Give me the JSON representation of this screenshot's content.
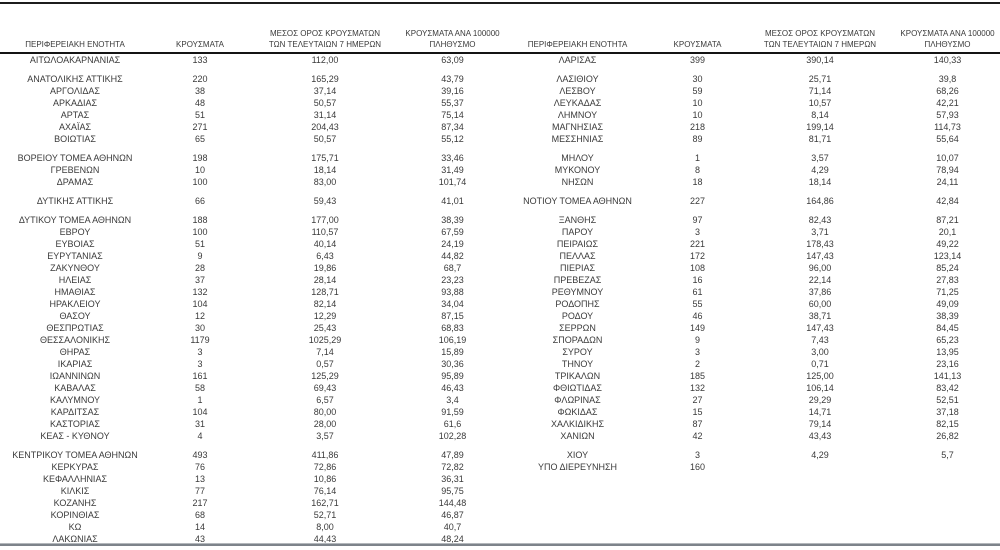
{
  "meta": {
    "language": "el",
    "text_color": "#3a3a3a",
    "top_rule_color": "#1c1c1c",
    "header_rule_color": "#141414",
    "bottom_rule_color": "#8a9096",
    "decimal_separator": ","
  },
  "columns": [
    {
      "key": "region",
      "lines": [
        "ΠΕΡΙΦΕΡΕΙΑΚΗ ΕΝΟΤΗΤΑ"
      ]
    },
    {
      "key": "cases",
      "lines": [
        "ΚΡΟΥΣΜΑΤΑ"
      ]
    },
    {
      "key": "avg-7day",
      "lines": [
        "ΜΕΣΟΣ ΟΡΟΣ ΚΡΟΥΣΜΑΤΩΝ",
        "ΤΩΝ ΤΕΛΕΥΤΑΙΩΝ 7 ΗΜΕΡΩΝ"
      ]
    },
    {
      "key": "per-100k",
      "lines": [
        "ΚΡΟΥΣΜΑΤΑ ΑΝΑ 100000",
        "ΠΛΗΘΥΣΜΟ"
      ]
    }
  ],
  "rows": [
    {
      "type": "data",
      "left": [
        "ΑΙΤΩΛΟΑΚΑΡΝΑΝΙΑΣ",
        "133",
        "112,00",
        "63,09"
      ],
      "right": [
        "ΛΑΡΙΣΑΣ",
        "399",
        "390,14",
        "140,33"
      ]
    },
    {
      "type": "spacer"
    },
    {
      "type": "data",
      "left": [
        "ΑΝΑΤΟΛΙΚΗΣ ΑΤΤΙΚΗΣ",
        "220",
        "165,29",
        "43,79"
      ],
      "right": [
        "ΛΑΣΙΘΙΟΥ",
        "30",
        "25,71",
        "39,8"
      ]
    },
    {
      "type": "data",
      "left": [
        "ΑΡΓΟΛΙΔΑΣ",
        "38",
        "37,14",
        "39,16"
      ],
      "right": [
        "ΛΕΣΒΟΥ",
        "59",
        "71,14",
        "68,26"
      ]
    },
    {
      "type": "data",
      "left": [
        "ΑΡΚΑΔΙΑΣ",
        "48",
        "50,57",
        "55,37"
      ],
      "right": [
        "ΛΕΥΚΑΔΑΣ",
        "10",
        "10,57",
        "42,21"
      ]
    },
    {
      "type": "data",
      "left": [
        "ΑΡΤΑΣ",
        "51",
        "31,14",
        "75,14"
      ],
      "right": [
        "ΛΗΜΝΟΥ",
        "10",
        "8,14",
        "57,93"
      ]
    },
    {
      "type": "data",
      "left": [
        "ΑΧΑΪΑΣ",
        "271",
        "204,43",
        "87,34"
      ],
      "right": [
        "ΜΑΓΝΗΣΙΑΣ",
        "218",
        "199,14",
        "114,73"
      ]
    },
    {
      "type": "data",
      "left": [
        "ΒΟΙΩΤΙΑΣ",
        "65",
        "50,57",
        "55,12"
      ],
      "right": [
        "ΜΕΣΣΗΝΙΑΣ",
        "89",
        "81,71",
        "55,64"
      ]
    },
    {
      "type": "spacer"
    },
    {
      "type": "data",
      "left": [
        "ΒΟΡΕΙΟΥ ΤΟΜΕΑ ΑΘΗΝΩΝ",
        "198",
        "175,71",
        "33,46"
      ],
      "right": [
        "ΜΗΛΟΥ",
        "1",
        "3,57",
        "10,07"
      ]
    },
    {
      "type": "data",
      "left": [
        "ΓΡΕΒΕΝΩΝ",
        "10",
        "18,14",
        "31,49"
      ],
      "right": [
        "ΜΥΚΟΝΟΥ",
        "8",
        "4,29",
        "78,94"
      ]
    },
    {
      "type": "data",
      "left": [
        "ΔΡΑΜΑΣ",
        "100",
        "83,00",
        "101,74"
      ],
      "right": [
        "ΝΗΣΩΝ",
        "18",
        "18,14",
        "24,11"
      ]
    },
    {
      "type": "spacer"
    },
    {
      "type": "data",
      "left": [
        "ΔΥΤΙΚΗΣ ΑΤΤΙΚΗΣ",
        "66",
        "59,43",
        "41,01"
      ],
      "right": [
        "ΝΟΤΙΟΥ ΤΟΜΕΑ ΑΘΗΝΩΝ",
        "227",
        "164,86",
        "42,84"
      ]
    },
    {
      "type": "spacer"
    },
    {
      "type": "data",
      "left": [
        "ΔΥΤΙΚΟΥ ΤΟΜΕΑ ΑΘΗΝΩΝ",
        "188",
        "177,00",
        "38,39"
      ],
      "right": [
        "ΞΑΝΘΗΣ",
        "97",
        "82,43",
        "87,21"
      ]
    },
    {
      "type": "data",
      "left": [
        "ΕΒΡΟΥ",
        "100",
        "110,57",
        "67,59"
      ],
      "right": [
        "ΠΑΡΟΥ",
        "3",
        "3,71",
        "20,1"
      ]
    },
    {
      "type": "data",
      "left": [
        "ΕΥΒΟΙΑΣ",
        "51",
        "40,14",
        "24,19"
      ],
      "right": [
        "ΠΕΙΡΑΙΩΣ",
        "221",
        "178,43",
        "49,22"
      ]
    },
    {
      "type": "data",
      "left": [
        "ΕΥΡΥΤΑΝΙΑΣ",
        "9",
        "6,43",
        "44,82"
      ],
      "right": [
        "ΠΕΛΛΑΣ",
        "172",
        "147,43",
        "123,14"
      ]
    },
    {
      "type": "data",
      "left": [
        "ΖΑΚΥΝΘΟΥ",
        "28",
        "19,86",
        "68,7"
      ],
      "right": [
        "ΠΙΕΡΙΑΣ",
        "108",
        "96,00",
        "85,24"
      ]
    },
    {
      "type": "data",
      "left": [
        "ΗΛΕΙΑΣ",
        "37",
        "28,14",
        "23,23"
      ],
      "right": [
        "ΠΡΕΒΕΖΑΣ",
        "16",
        "22,14",
        "27,83"
      ]
    },
    {
      "type": "data",
      "left": [
        "ΗΜΑΘΙΑΣ",
        "132",
        "128,71",
        "93,88"
      ],
      "right": [
        "ΡΕΘΥΜΝΟΥ",
        "61",
        "37,86",
        "71,25"
      ]
    },
    {
      "type": "data",
      "left": [
        "ΗΡΑΚΛΕΙΟΥ",
        "104",
        "82,14",
        "34,04"
      ],
      "right": [
        "ΡΟΔΟΠΗΣ",
        "55",
        "60,00",
        "49,09"
      ]
    },
    {
      "type": "data",
      "left": [
        "ΘΑΣΟΥ",
        "12",
        "12,29",
        "87,15"
      ],
      "right": [
        "ΡΟΔΟΥ",
        "46",
        "38,71",
        "38,39"
      ]
    },
    {
      "type": "data",
      "left": [
        "ΘΕΣΠΡΩΤΙΑΣ",
        "30",
        "25,43",
        "68,83"
      ],
      "right": [
        "ΣΕΡΡΩΝ",
        "149",
        "147,43",
        "84,45"
      ]
    },
    {
      "type": "data",
      "left": [
        "ΘΕΣΣΑΛΟΝΙΚΗΣ",
        "1179",
        "1025,29",
        "106,19"
      ],
      "right": [
        "ΣΠΟΡΑΔΩΝ",
        "9",
        "7,43",
        "65,23"
      ]
    },
    {
      "type": "data",
      "left": [
        "ΘΗΡΑΣ",
        "3",
        "7,14",
        "15,89"
      ],
      "right": [
        "ΣΥΡΟΥ",
        "3",
        "3,00",
        "13,95"
      ]
    },
    {
      "type": "data",
      "left": [
        "ΙΚΑΡΙΑΣ",
        "3",
        "0,57",
        "30,36"
      ],
      "right": [
        "ΤΗΝΟΥ",
        "2",
        "0,71",
        "23,16"
      ]
    },
    {
      "type": "data",
      "left": [
        "ΙΩΑΝΝΙΝΩΝ",
        "161",
        "125,29",
        "95,89"
      ],
      "right": [
        "ΤΡΙΚΑΛΩΝ",
        "185",
        "125,00",
        "141,13"
      ]
    },
    {
      "type": "data",
      "left": [
        "ΚΑΒΑΛΑΣ",
        "58",
        "69,43",
        "46,43"
      ],
      "right": [
        "ΦΘΙΩΤΙΔΑΣ",
        "132",
        "106,14",
        "83,42"
      ]
    },
    {
      "type": "data",
      "left": [
        "ΚΑΛΥΜΝΟΥ",
        "1",
        "6,57",
        "3,4"
      ],
      "right": [
        "ΦΛΩΡΙΝΑΣ",
        "27",
        "29,29",
        "52,51"
      ]
    },
    {
      "type": "data",
      "left": [
        "ΚΑΡΔΙΤΣΑΣ",
        "104",
        "80,00",
        "91,59"
      ],
      "right": [
        "ΦΩΚΙΔΑΣ",
        "15",
        "14,71",
        "37,18"
      ]
    },
    {
      "type": "data",
      "left": [
        "ΚΑΣΤΟΡΙΑΣ",
        "31",
        "28,00",
        "61,6"
      ],
      "right": [
        "ΧΑΛΚΙΔΙΚΗΣ",
        "87",
        "79,14",
        "82,15"
      ]
    },
    {
      "type": "data",
      "left": [
        "ΚΕΑΣ - ΚΥΘΝΟΥ",
        "4",
        "3,57",
        "102,28"
      ],
      "right": [
        "ΧΑΝΙΩΝ",
        "42",
        "43,43",
        "26,82"
      ]
    },
    {
      "type": "spacer"
    },
    {
      "type": "data",
      "left": [
        "ΚΕΝΤΡΙΚΟΥ ΤΟΜΕΑ ΑΘΗΝΩΝ",
        "493",
        "411,86",
        "47,89"
      ],
      "right": [
        "ΧΙΟΥ",
        "3",
        "4,29",
        "5,7"
      ]
    },
    {
      "type": "data",
      "left": [
        "ΚΕΡΚΥΡΑΣ",
        "76",
        "72,86",
        "72,82"
      ],
      "right": [
        "ΥΠΟ ΔΙΕΡΕΥΝΗΣΗ",
        "160",
        "",
        ""
      ]
    },
    {
      "type": "data",
      "left": [
        "ΚΕΦΑΛΛΗΝΙΑΣ",
        "13",
        "10,86",
        "36,31"
      ],
      "right": [
        "",
        "",
        "",
        ""
      ]
    },
    {
      "type": "data",
      "left": [
        "ΚΙΛΚΙΣ",
        "77",
        "76,14",
        "95,75"
      ],
      "right": [
        "",
        "",
        "",
        ""
      ]
    },
    {
      "type": "data",
      "left": [
        "ΚΟΖΑΝΗΣ",
        "217",
        "162,71",
        "144,48"
      ],
      "right": [
        "",
        "",
        "",
        ""
      ]
    },
    {
      "type": "data",
      "left": [
        "ΚΟΡΙΝΘΙΑΣ",
        "68",
        "52,71",
        "46,87"
      ],
      "right": [
        "",
        "",
        "",
        ""
      ]
    },
    {
      "type": "data",
      "left": [
        "ΚΩ",
        "14",
        "8,00",
        "40,7"
      ],
      "right": [
        "",
        "",
        "",
        ""
      ]
    },
    {
      "type": "data",
      "left": [
        "ΛΑΚΩΝΙΑΣ",
        "43",
        "44,43",
        "48,24"
      ],
      "right": [
        "",
        "",
        "",
        ""
      ]
    }
  ]
}
